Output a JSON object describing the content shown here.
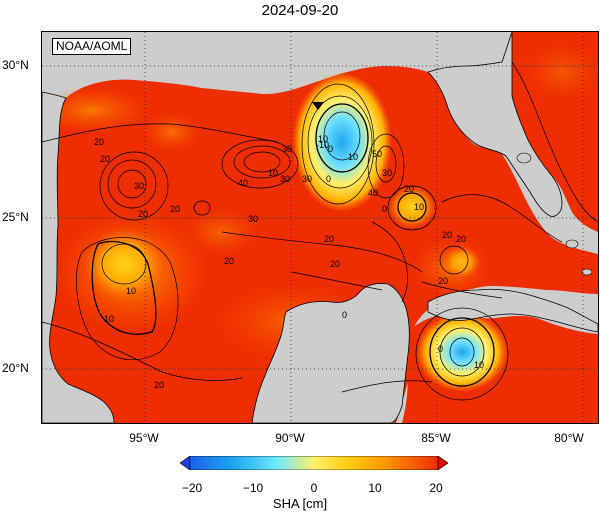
{
  "title": "2024-09-20",
  "credit": "NOAA/AOML",
  "axes": {
    "lat_labels": [
      "30°N",
      "25°N",
      "20°N"
    ],
    "lon_labels": [
      "95°W",
      "90°W",
      "85°W",
      "80°W"
    ]
  },
  "colorbar": {
    "title": "SHA [cm]",
    "ticks": [
      "−20",
      "−10",
      "0",
      "10",
      "20"
    ],
    "min": -20,
    "max": 20
  },
  "map_extent": {
    "lon_min": -98,
    "lon_max": -79,
    "lat_min": 18,
    "lat_max": 31
  },
  "contour_labels": [
    "20",
    "30",
    "20",
    "10",
    "20",
    "20",
    "40",
    "30",
    "10",
    "0",
    "30",
    "-10",
    "0",
    "10",
    "20",
    "40",
    "50",
    "30",
    "0",
    "20",
    "10",
    "20",
    "20",
    "20",
    "30",
    "10",
    "0",
    "20",
    "20",
    "10",
    "20",
    "30",
    "10",
    "0"
  ],
  "colors": {
    "land": "#cdcdcd",
    "sha_high": "#ee2d00",
    "sha_mid": "#ffc200",
    "sha_zero": "#fff06a",
    "sha_low": "#1ea0f0",
    "grid": "#222222"
  }
}
